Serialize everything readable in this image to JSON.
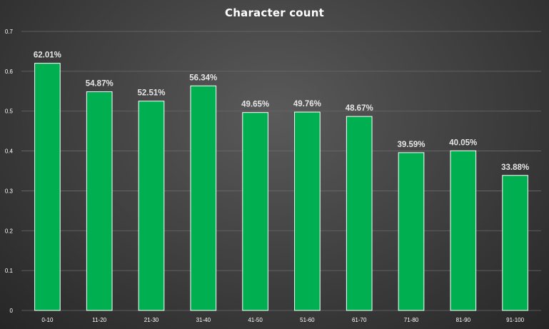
{
  "chart_data": {
    "type": "bar",
    "title": "Character count",
    "xlabel": "",
    "ylabel": "",
    "categories": [
      "0-10",
      "11-20",
      "21-30",
      "31-40",
      "41-50",
      "51-60",
      "61-70",
      "71-80",
      "81-90",
      "91-100"
    ],
    "values": [
      0.6201,
      0.5487,
      0.5251,
      0.5634,
      0.4965,
      0.4976,
      0.4867,
      0.3959,
      0.4005,
      0.3388
    ],
    "data_labels": [
      "62.01%",
      "54.87%",
      "52.51%",
      "56.34%",
      "49.65%",
      "49.76%",
      "48.67%",
      "39.59%",
      "40.05%",
      "33.88%"
    ],
    "ylim": [
      0,
      0.7
    ],
    "yticks": [
      "0",
      "0.1",
      "0.2",
      "0.3",
      "0.4",
      "0.5",
      "0.6",
      "0.7"
    ],
    "grid": true,
    "legend": "none",
    "colors": {
      "bar_fill": "#00b050",
      "bar_stroke": "#ffffff",
      "label_text": "#e6e6e6",
      "tick_text": "#ffffff",
      "grid": "#6a6a6a",
      "title": "#ffffff"
    }
  }
}
